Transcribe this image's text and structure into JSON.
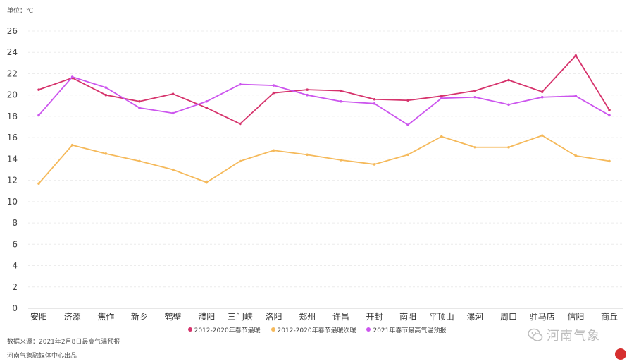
{
  "unit_label": "单位：℃",
  "source_label": "数据来源：2021年2月8日最高气温预报",
  "credit_label": "河南气象融媒体中心出品",
  "watermark_label": "河南气象",
  "chart_data": {
    "type": "line",
    "categories": [
      "安阳",
      "济源",
      "焦作",
      "新乡",
      "鹤壁",
      "濮阳",
      "三门峡",
      "洛阳",
      "郑州",
      "许昌",
      "开封",
      "南阳",
      "平顶山",
      "漯河",
      "周口",
      "驻马店",
      "信阳",
      "商丘"
    ],
    "yticks": [
      "0",
      "2",
      "4",
      "6",
      "8",
      "10",
      "12",
      "14",
      "16",
      "18",
      "20",
      "22",
      "24",
      "26"
    ],
    "ylim": [
      0,
      26
    ],
    "grid": true,
    "legend_position": "bottom",
    "series": [
      {
        "name": "2012-2020年春节最暖",
        "color": "#d6336c",
        "values": [
          20.5,
          21.6,
          20.0,
          19.4,
          20.1,
          18.8,
          17.3,
          20.2,
          20.5,
          20.4,
          19.6,
          19.5,
          19.9,
          20.4,
          21.4,
          20.3,
          23.7,
          18.6
        ]
      },
      {
        "name": "2012-2020年春节最暖次暖",
        "color": "#f5b95a",
        "values": [
          11.7,
          15.3,
          14.5,
          13.8,
          13.0,
          11.8,
          13.8,
          14.8,
          14.4,
          13.9,
          13.5,
          14.4,
          16.1,
          15.1,
          15.1,
          16.2,
          14.3,
          13.8
        ]
      },
      {
        "name": "2021年春节最高气温预报",
        "color": "#cc55ee",
        "values": [
          18.1,
          21.7,
          20.7,
          18.8,
          18.3,
          19.4,
          21.0,
          20.9,
          20.0,
          19.4,
          19.2,
          17.2,
          19.7,
          19.8,
          19.1,
          19.8,
          19.9,
          18.1
        ]
      }
    ]
  }
}
